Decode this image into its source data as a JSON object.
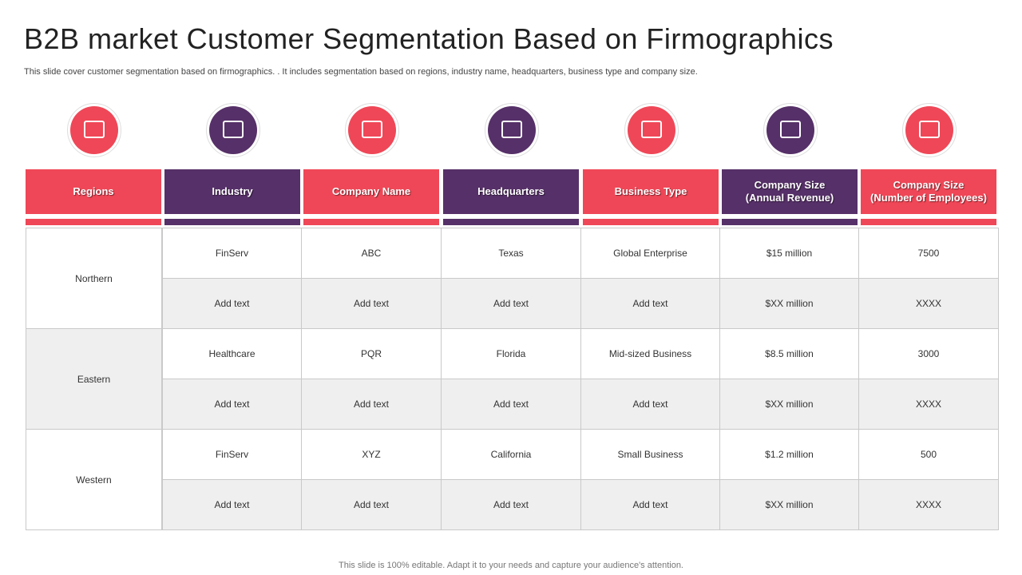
{
  "header": {
    "title": "B2B market Customer Segmentation Based on Firmographics",
    "subtitle": "This slide cover customer segmentation based on firmographics. . It includes segmentation based on regions, industry name, headquarters, business type and company size."
  },
  "table": {
    "headers": [
      "Regions",
      "Industry",
      "Company Name",
      "Headquarters",
      "Business  Type",
      "Company Size\n(Annual Revenue)",
      "Company Size\n(Number of Employees)"
    ],
    "groups": [
      {
        "region": "Northern",
        "rows": [
          [
            "FinServ",
            "ABC",
            "Texas",
            "Global Enterprise",
            "$15 million",
            "7500"
          ],
          [
            "Add text",
            "Add text",
            "Add text",
            "Add text",
            "$XX  million",
            "XXXX"
          ]
        ]
      },
      {
        "region": "Eastern",
        "rows": [
          [
            "Healthcare",
            "PQR",
            "Florida",
            "Mid-sized Business",
            "$8.5 million",
            "3000"
          ],
          [
            "Add text",
            "Add text",
            "Add text",
            "Add text",
            "$XX  million",
            "XXXX"
          ]
        ]
      },
      {
        "region": "Western",
        "rows": [
          [
            "FinServ",
            "XYZ",
            "California",
            "Small Business",
            "$1.2 million",
            "500"
          ],
          [
            "Add text",
            "Add text",
            "Add text",
            "Add text",
            "$XX  million",
            "XXXX"
          ]
        ]
      }
    ]
  },
  "footer": "This slide is 100% editable. Adapt it to your needs and capture your audience's attention."
}
